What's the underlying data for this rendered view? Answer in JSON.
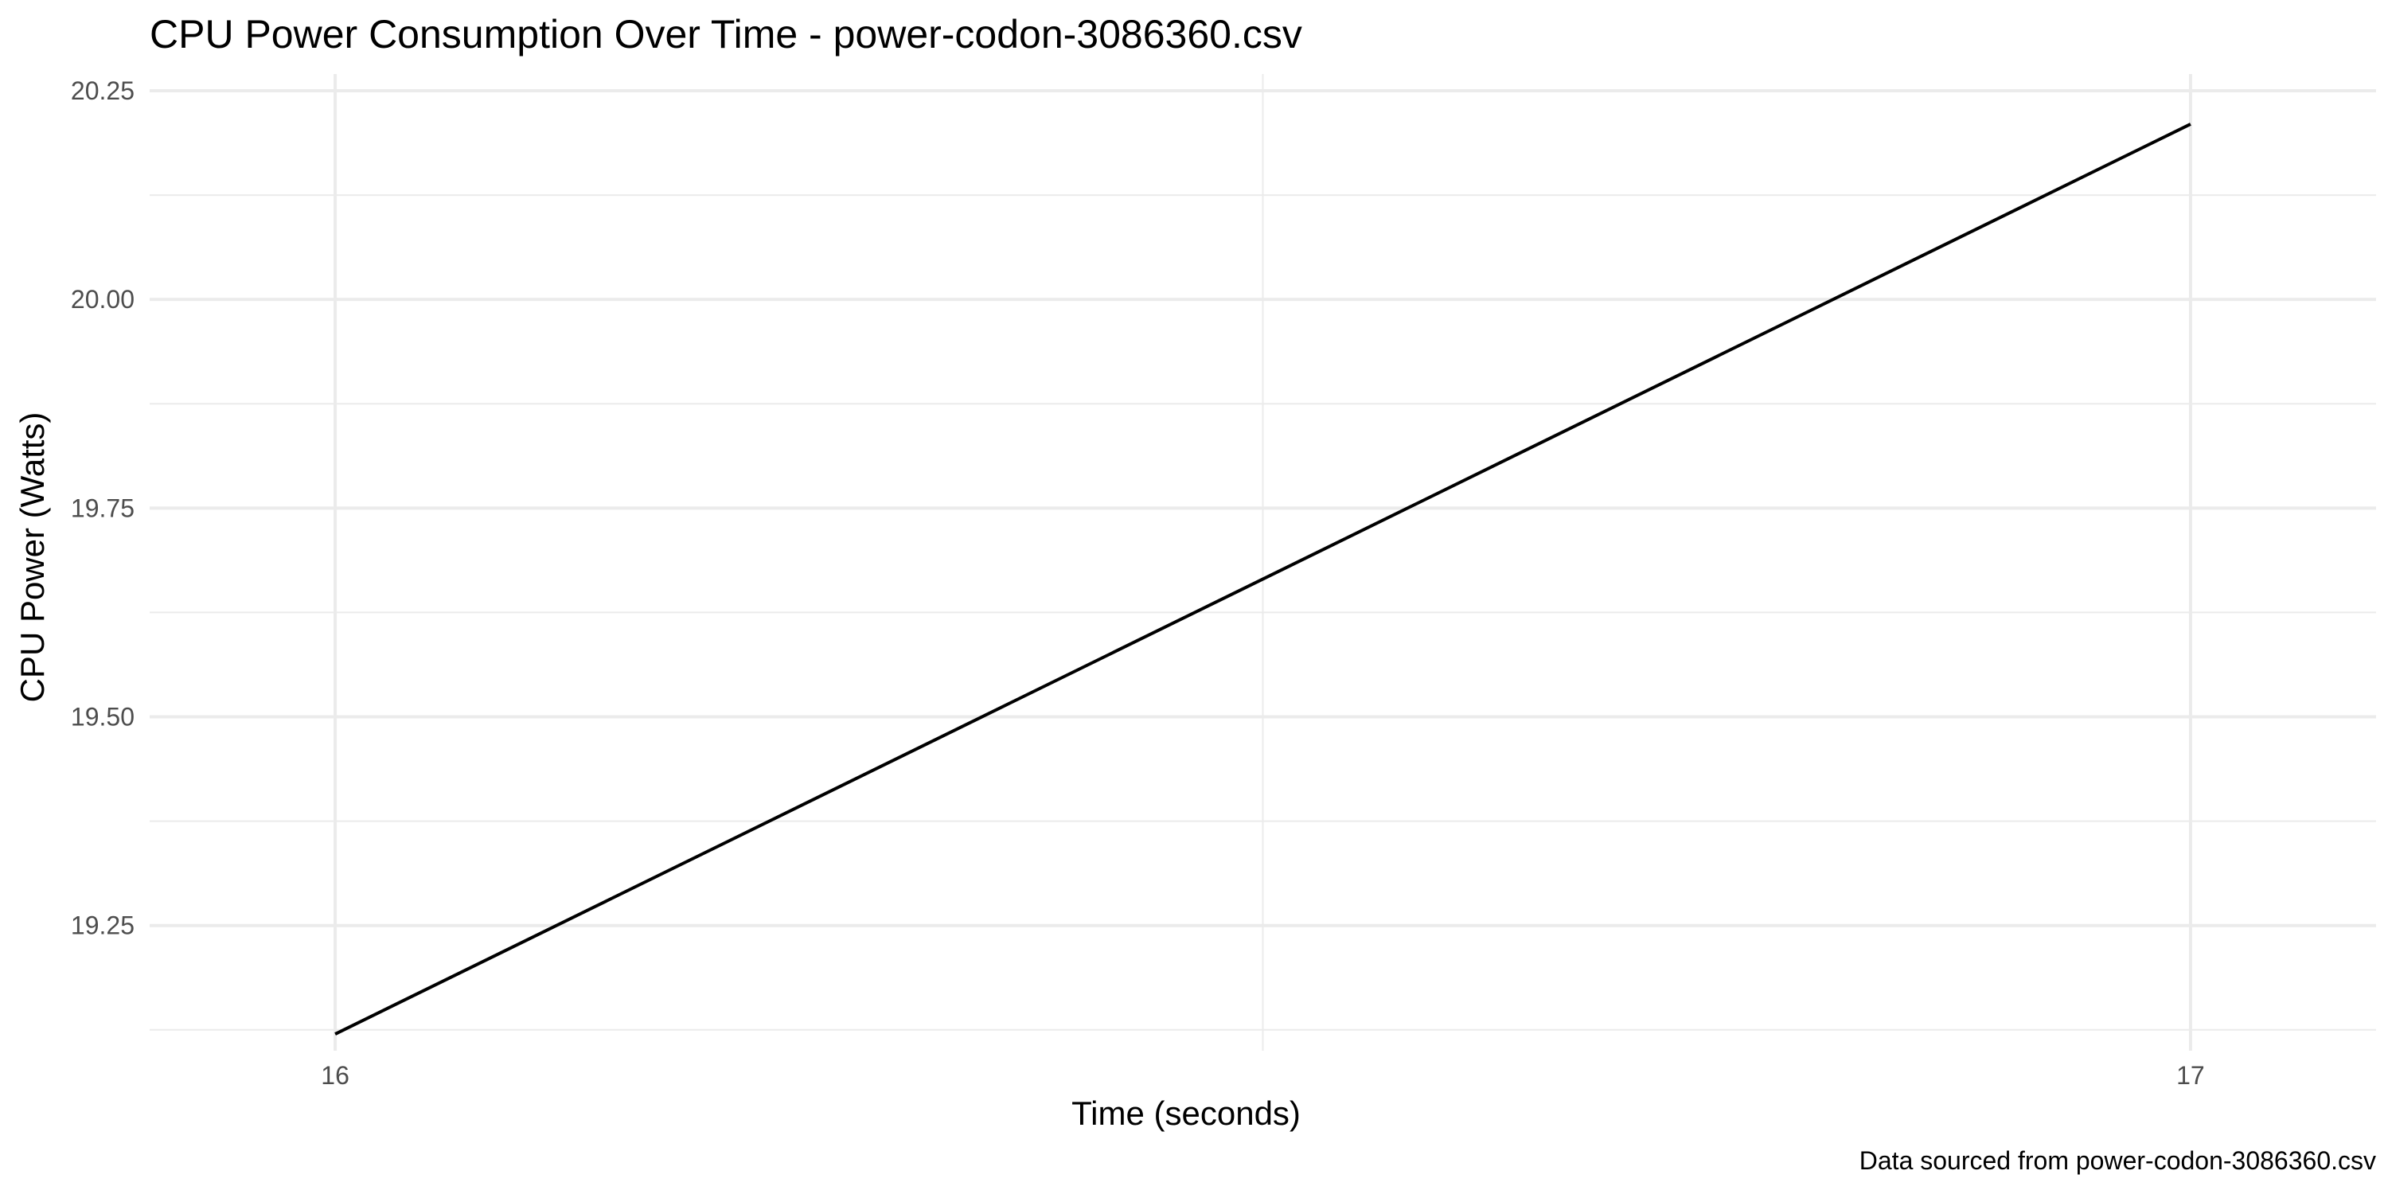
{
  "chart_data": {
    "type": "line",
    "title": "CPU Power Consumption Over Time - power-codon-3086360.csv",
    "xlabel": "Time (seconds)",
    "ylabel": "CPU Power (Watts)",
    "caption": "Data sourced from power-codon-3086360.csv",
    "xlim": [
      15.9,
      17.1
    ],
    "ylim": [
      19.1,
      20.27
    ],
    "x_ticks": [
      16,
      17
    ],
    "x_tick_labels": [
      "16",
      "17"
    ],
    "x_minor_ticks": [
      16.5
    ],
    "y_ticks": [
      19.25,
      19.5,
      19.75,
      20.0,
      20.25
    ],
    "y_tick_labels": [
      "19.25",
      "19.50",
      "19.75",
      "20.00",
      "20.25"
    ],
    "y_minor_ticks": [
      19.125,
      19.375,
      19.625,
      19.875,
      20.125
    ],
    "grid": true,
    "legend": "none",
    "series": [
      {
        "color": "#000000",
        "x": [
          16,
          17
        ],
        "y": [
          19.12,
          20.21
        ]
      }
    ]
  }
}
